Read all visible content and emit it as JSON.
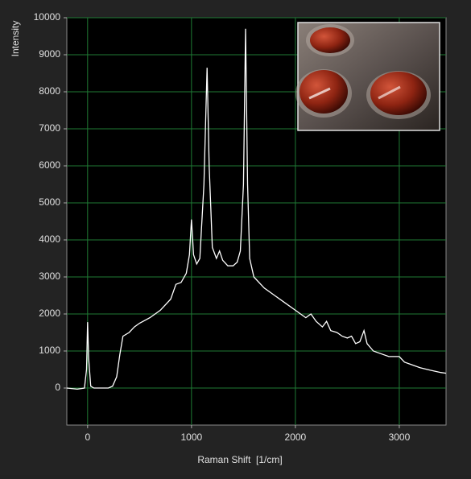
{
  "chart_data": {
    "type": "line",
    "x_label": "Raman Shift  [1/cm]",
    "y_label": "Intensity",
    "x": [
      -200,
      -100,
      -30,
      -10,
      0,
      10,
      30,
      60,
      100,
      200,
      240,
      280,
      310,
      340,
      400,
      450,
      500,
      600,
      700,
      800,
      850,
      900,
      950,
      980,
      1000,
      1020,
      1050,
      1080,
      1120,
      1150,
      1170,
      1200,
      1240,
      1270,
      1300,
      1350,
      1400,
      1440,
      1470,
      1500,
      1520,
      1540,
      1560,
      1600,
      1700,
      1800,
      1900,
      2000,
      2050,
      2100,
      2150,
      2200,
      2260,
      2300,
      2340,
      2400,
      2450,
      2500,
      2540,
      2580,
      2620,
      2660,
      2690,
      2750,
      2800,
      2900,
      3000,
      3050,
      3100,
      3200,
      3300,
      3400,
      3450
    ],
    "values": [
      0,
      -30,
      0,
      500,
      1780,
      800,
      50,
      0,
      0,
      0,
      50,
      300,
      900,
      1400,
      1500,
      1650,
      1750,
      1900,
      2100,
      2400,
      2800,
      2850,
      3100,
      3600,
      4550,
      3600,
      3350,
      3500,
      5500,
      8650,
      6000,
      3800,
      3500,
      3700,
      3450,
      3300,
      3300,
      3400,
      3700,
      5500,
      9700,
      5500,
      3500,
      3000,
      2700,
      2500,
      2300,
      2100,
      2000,
      1900,
      2000,
      1800,
      1650,
      1800,
      1550,
      1500,
      1400,
      1350,
      1400,
      1200,
      1250,
      1550,
      1200,
      1000,
      950,
      850,
      850,
      700,
      650,
      550,
      480,
      420,
      400
    ],
    "color": "#ffffff",
    "xlim": [
      -200,
      3450
    ],
    "ylim": [
      -1000,
      10000
    ],
    "xticks": [
      0,
      1000,
      2000,
      3000
    ],
    "yticks": [
      0,
      1000,
      2000,
      3000,
      4000,
      5000,
      6000,
      7000,
      8000,
      9000,
      10000
    ],
    "grid": true
  }
}
